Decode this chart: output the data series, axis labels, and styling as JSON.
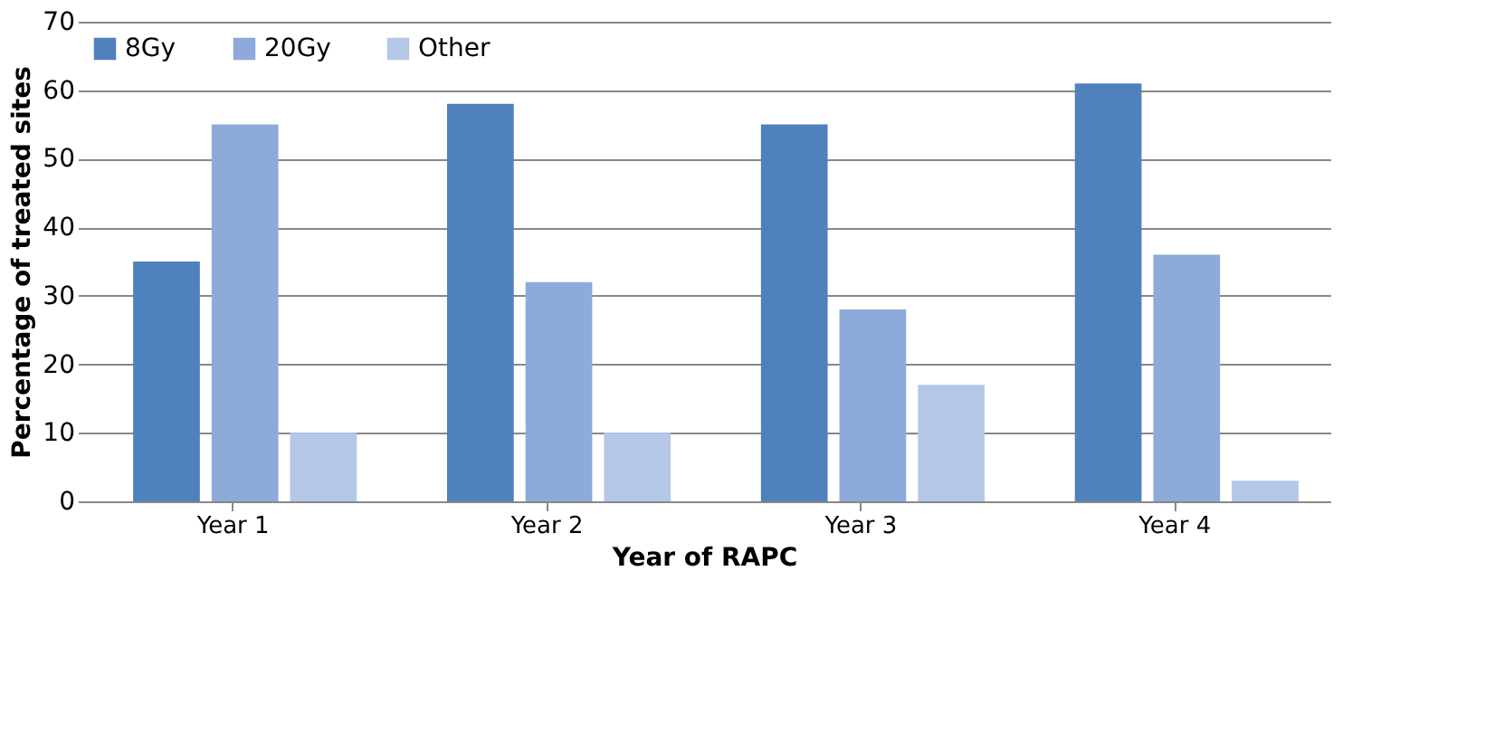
{
  "chart_data": {
    "type": "bar",
    "xlabel": "Year of RAPC",
    "ylabel": "Percentage of treated sites",
    "categories": [
      "Year 1",
      "Year 2",
      "Year 3",
      "Year 4"
    ],
    "series": [
      {
        "name": "8Gy",
        "color": "#4f81bd",
        "values": [
          35,
          58,
          55,
          61
        ]
      },
      {
        "name": "20Gy",
        "color": "#8eaadb",
        "values": [
          55,
          32,
          28,
          36
        ]
      },
      {
        "name": "Other",
        "color": "#b4c7e7",
        "values": [
          10,
          10,
          17,
          3
        ]
      }
    ],
    "ylim": [
      0,
      70
    ],
    "yticks": [
      0,
      10,
      20,
      30,
      40,
      50,
      60,
      70
    ],
    "grid": "y",
    "legend": "top left"
  }
}
